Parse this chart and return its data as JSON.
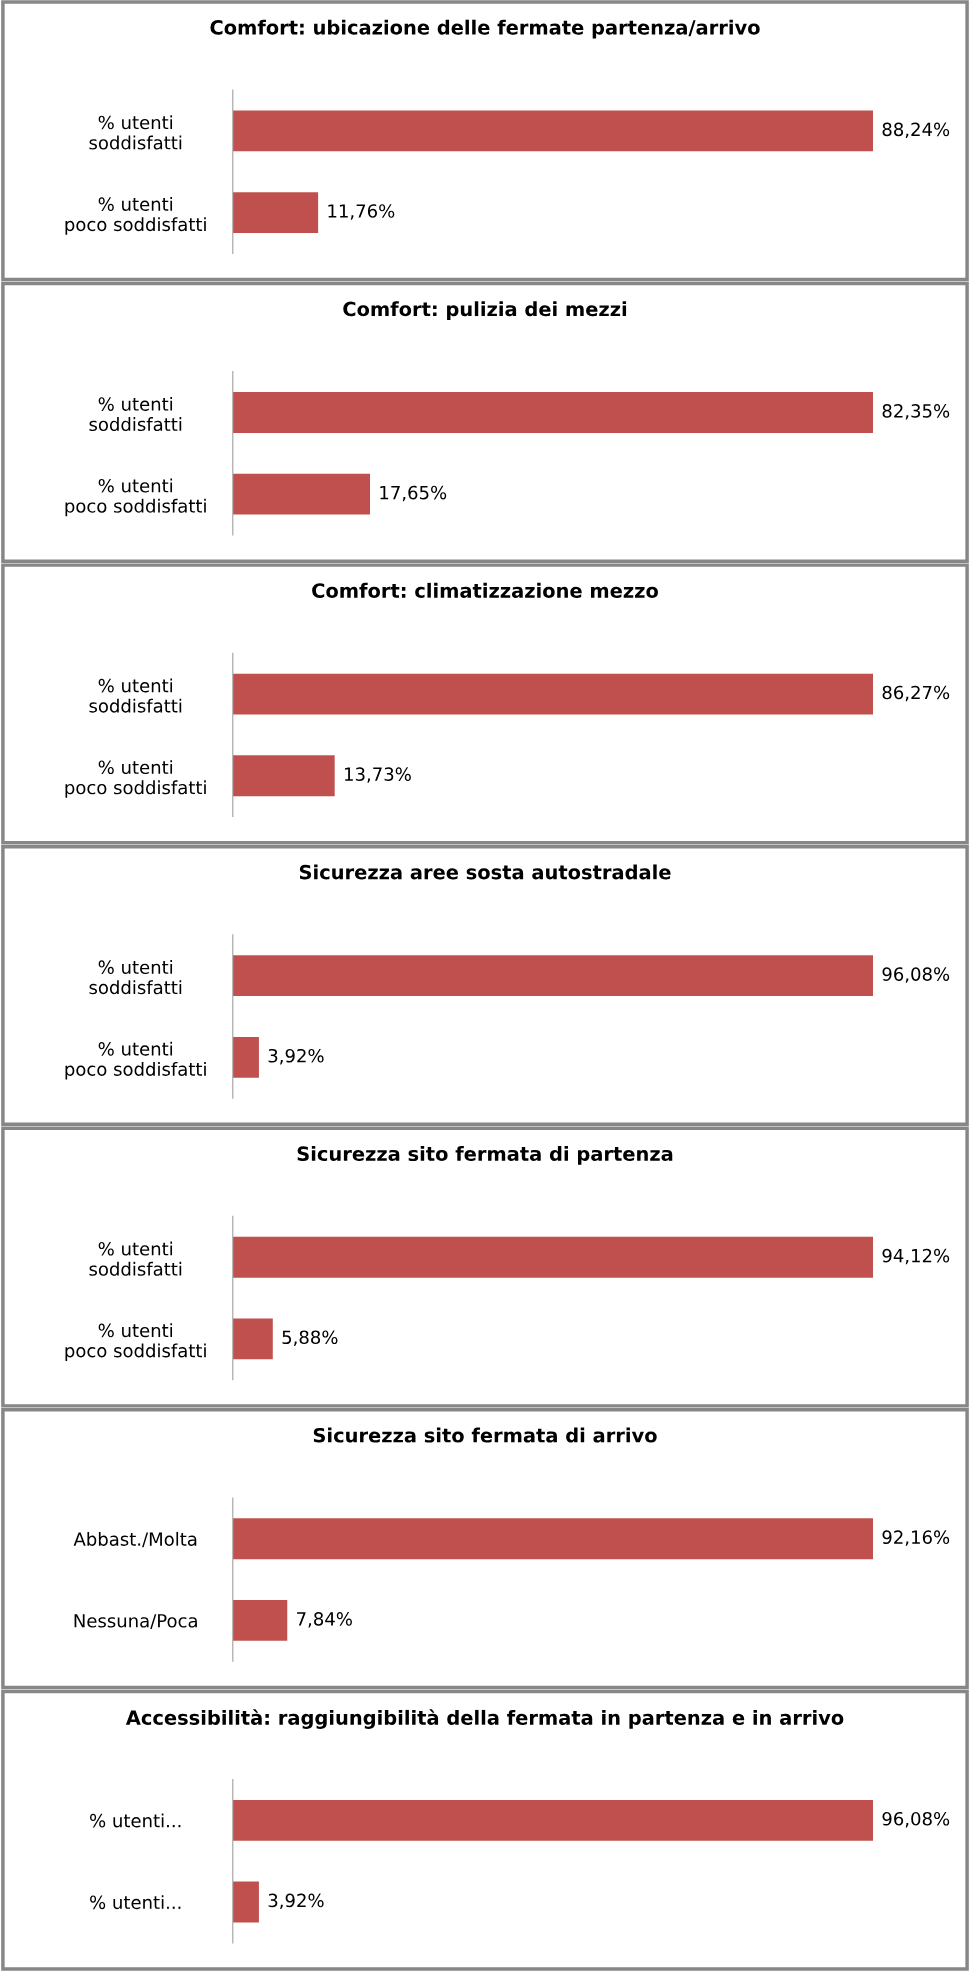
{
  "chart_data": [
    {
      "type": "bar",
      "orientation": "horizontal",
      "title": "Comfort: ubicazione delle fermate partenza/arrivo",
      "categories": [
        "% utenti\nsoddisfatti",
        "% utenti\npoco soddisfatti"
      ],
      "values": [
        88.24,
        11.76
      ],
      "value_labels": [
        "88,24%",
        "11,76%"
      ],
      "color": "#c0504d",
      "tick_labels": "y",
      "grid": false,
      "legend": false
    },
    {
      "type": "bar",
      "orientation": "horizontal",
      "title": "Comfort: pulizia dei mezzi",
      "categories": [
        "% utenti\nsoddisfatti",
        "% utenti\npoco soddisfatti"
      ],
      "values": [
        82.35,
        17.65
      ],
      "value_labels": [
        "82,35%",
        "17,65%"
      ],
      "color": "#c0504d",
      "tick_labels": "y",
      "grid": false,
      "legend": false
    },
    {
      "type": "bar",
      "orientation": "horizontal",
      "title": "Comfort: climatizzazione mezzo",
      "categories": [
        "% utenti\nsoddisfatti",
        "% utenti\npoco soddisfatti"
      ],
      "values": [
        86.27,
        13.73
      ],
      "value_labels": [
        "86,27%",
        "13,73%"
      ],
      "color": "#c0504d",
      "tick_labels": "y",
      "grid": false,
      "legend": false
    },
    {
      "type": "bar",
      "orientation": "horizontal",
      "title": "Sicurezza aree sosta autostradale",
      "categories": [
        "% utenti\nsoddisfatti",
        "% utenti\npoco soddisfatti"
      ],
      "values": [
        96.08,
        3.92
      ],
      "value_labels": [
        "96,08%",
        "3,92%"
      ],
      "color": "#c0504d",
      "tick_labels": "y",
      "grid": false,
      "legend": false
    },
    {
      "type": "bar",
      "orientation": "horizontal",
      "title": "Sicurezza sito fermata di partenza",
      "categories": [
        "% utenti\nsoddisfatti",
        "% utenti\npoco soddisfatti"
      ],
      "values": [
        94.12,
        5.88
      ],
      "value_labels": [
        "94,12%",
        "5,88%"
      ],
      "color": "#c0504d",
      "tick_labels": "y",
      "grid": false,
      "legend": false
    },
    {
      "type": "bar",
      "orientation": "horizontal",
      "title": "Sicurezza sito fermata di arrivo",
      "categories": [
        "Abbast./Molta",
        "Nessuna/Poca"
      ],
      "values": [
        92.16,
        7.84
      ],
      "value_labels": [
        "92,16%",
        "7,84%"
      ],
      "color": "#c0504d",
      "tick_labels": "y",
      "grid": false,
      "legend": false
    },
    {
      "type": "bar",
      "orientation": "horizontal",
      "title": "Accessibilità: raggiungibilità della fermata in partenza e in arrivo",
      "categories": [
        "% utenti...",
        "% utenti..."
      ],
      "values": [
        96.08,
        3.92
      ],
      "value_labels": [
        "96,08%",
        "3,92%"
      ],
      "color": "#c0504d",
      "tick_labels": "y",
      "grid": false,
      "legend": false
    }
  ]
}
